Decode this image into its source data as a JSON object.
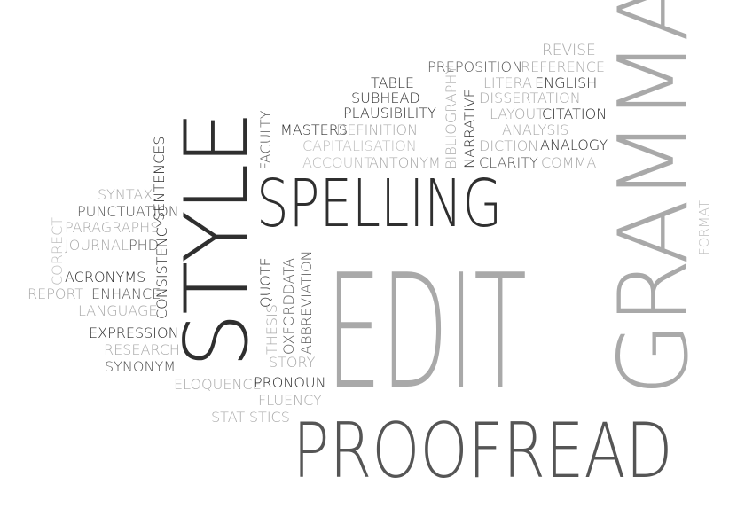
{
  "words": {
    "proofread": "PROOFREAD",
    "edit": "EDIT",
    "spelling": "SPELLING",
    "grammar": "GRAMMAR",
    "style": "STYLE",
    "revise": "REVISE",
    "preposition": "PREPOSITION",
    "reference": "REFERENCE",
    "table": "TABLE",
    "litera": "LITERA",
    "english": "ENGLISH",
    "subhead": "SUBHEAD",
    "dissertation": "DISSERTATION",
    "plausibility": "PLAUSIBILITY",
    "layout": "LAYOUT",
    "citation": "CITATION",
    "masters": "MASTERS",
    "definition": "DEFINITION",
    "analysis": "ANALYSIS",
    "capitalisation": "CAPITALISATION",
    "diction": "DICTION",
    "analogy": "ANALOGY",
    "account": "ACCOUNT",
    "antonym": "ANTONYM",
    "clarity": "CLARITY",
    "comma": "COMMA",
    "bibliography": "BIBLIOGRAPHY",
    "narrative": "NARRATIVE",
    "faculty": "FACULTY",
    "sentences": "SENTENCES",
    "syntax": "SYNTAX",
    "punctuation": "PUNCTUATION",
    "paragraphs": "PARAGRAPHS",
    "correct": "CORRECT",
    "journal": "JOURNAL",
    "phd": "PHD",
    "consistency": "CONSISTENCY",
    "acronyms": "ACRONYMS",
    "report": "REPORT",
    "enhance": "ENHANCE",
    "language": "LANGUAGE",
    "expression": "EXPRESSION",
    "research": "RESEARCH",
    "synonym": "SYNONYM",
    "quote": "QUOTE",
    "thesis": "THESIS",
    "oxforddata": "OXFORDDATA",
    "abbreviation": "ABBREVIATION",
    "story": "STORY",
    "eloquence": "ELOQUENCE",
    "pronoun": "PRONOUN",
    "fluency": "FLUENCY",
    "statistics": "STATISTICS",
    "format": "FORMAT"
  }
}
